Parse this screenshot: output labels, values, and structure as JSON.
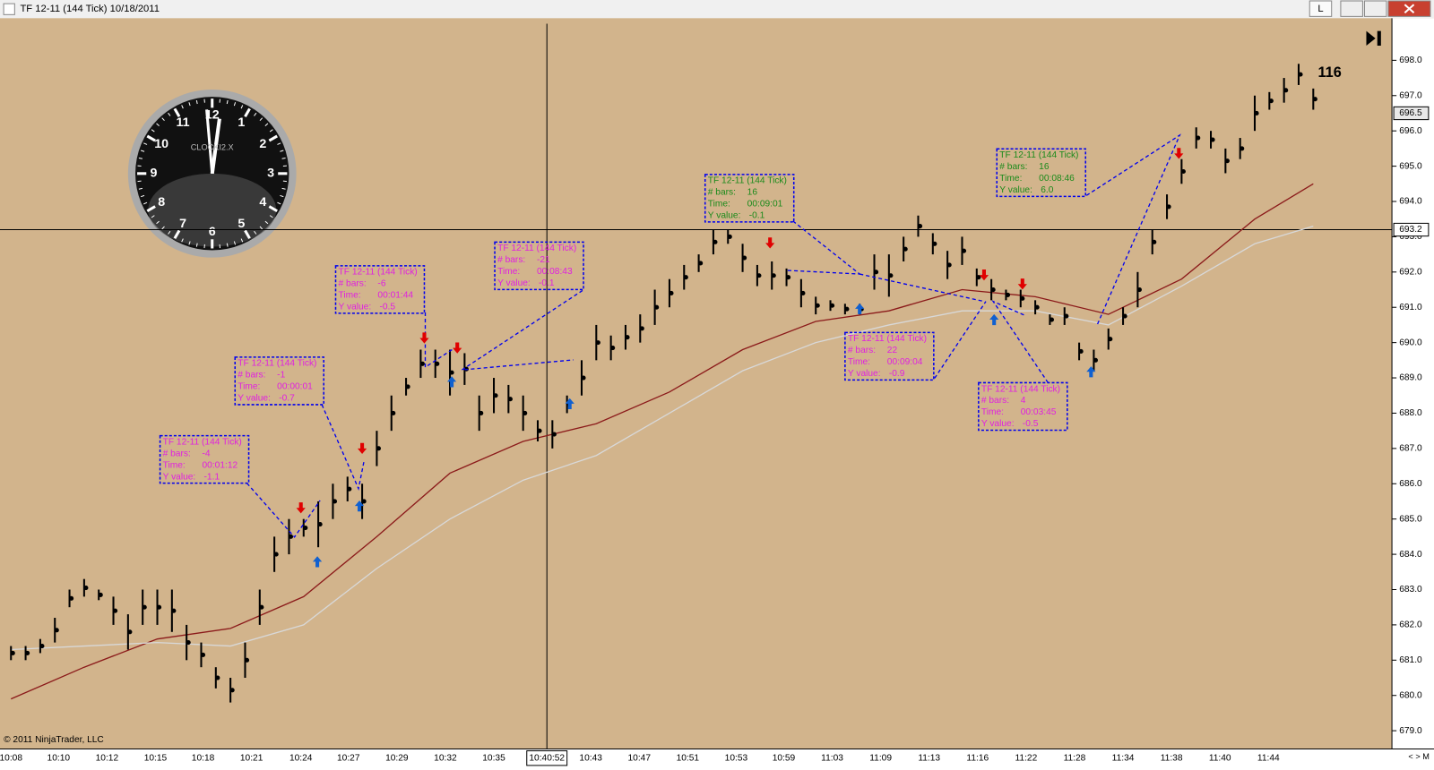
{
  "window": {
    "title": "TF 12-11 (144 Tick)  10/18/2011",
    "buttons": [
      "L"
    ]
  },
  "bar_count_label": "116",
  "copyright": "© 2011 NinjaTrader, LLC",
  "price_axis": {
    "ticks": [
      {
        "value": 679,
        "label": "679.0"
      },
      {
        "value": 680,
        "label": "680.0"
      },
      {
        "value": 681,
        "label": "681.0"
      },
      {
        "value": 682,
        "label": "682.0"
      },
      {
        "value": 683,
        "label": "683.0"
      },
      {
        "value": 684,
        "label": "684.0"
      },
      {
        "value": 685,
        "label": "685.0"
      },
      {
        "value": 686,
        "label": "686.0"
      },
      {
        "value": 687,
        "label": "687.0"
      },
      {
        "value": 688,
        "label": "688.0"
      },
      {
        "value": 689,
        "label": "689.0"
      },
      {
        "value": 690,
        "label": "690.0"
      },
      {
        "value": 691,
        "label": "691.0"
      },
      {
        "value": 692,
        "label": "692.0"
      },
      {
        "value": 693,
        "label": "693.0"
      },
      {
        "value": 694,
        "label": "694.0"
      },
      {
        "value": 695,
        "label": "695.0"
      },
      {
        "value": 696,
        "label": "696.0"
      },
      {
        "value": 697,
        "label": "697.0"
      },
      {
        "value": 698,
        "label": "698.0"
      }
    ],
    "crosshair": {
      "value": 693.2,
      "label": "693.2"
    },
    "last_price": {
      "value": 696.5,
      "label": "696.5"
    }
  },
  "time_axis": {
    "labels": [
      "10:08",
      "10:10",
      "10:12",
      "10:15",
      "10:18",
      "10:21",
      "10:24",
      "10:27",
      "10:29",
      "10:32",
      "10:35",
      "10:40:52",
      "10:43",
      "10:47",
      "10:51",
      "10:53",
      "10:59",
      "11:03",
      "11:09",
      "11:13",
      "11:16",
      "11:22",
      "11:28",
      "11:34",
      "11:38",
      "11:40",
      "11:44"
    ]
  },
  "price_bars": [
    [
      681.0,
      681.4
    ],
    [
      681.0,
      681.4
    ],
    [
      681.2,
      681.6
    ],
    [
      681.5,
      682.2
    ],
    [
      682.5,
      683.0
    ],
    [
      682.8,
      683.3
    ],
    [
      682.7,
      683.0
    ],
    [
      682.0,
      682.8
    ],
    [
      681.3,
      682.3
    ],
    [
      682.0,
      683.0
    ],
    [
      682.0,
      683.0
    ],
    [
      681.8,
      683.0
    ],
    [
      681.0,
      682.0
    ],
    [
      680.8,
      681.5
    ],
    [
      680.2,
      680.8
    ],
    [
      679.8,
      680.5
    ],
    [
      680.5,
      681.5
    ],
    [
      682.0,
      683.0
    ],
    [
      683.5,
      684.5
    ],
    [
      684.0,
      685.0
    ],
    [
      684.5,
      685.0
    ],
    [
      684.2,
      685.5
    ],
    [
      685.0,
      686.0
    ],
    [
      685.5,
      686.2
    ],
    [
      685.0,
      686.0
    ],
    [
      686.5,
      687.5
    ],
    [
      687.5,
      688.5
    ],
    [
      688.5,
      689.0
    ],
    [
      689.0,
      689.8
    ],
    [
      689.0,
      689.8
    ],
    [
      688.5,
      689.8
    ],
    [
      688.8,
      689.7
    ],
    [
      687.5,
      688.5
    ],
    [
      688.0,
      689.0
    ],
    [
      688.0,
      688.8
    ],
    [
      687.5,
      688.5
    ],
    [
      687.2,
      687.8
    ],
    [
      687.0,
      687.8
    ],
    [
      688.0,
      688.5
    ],
    [
      688.5,
      689.5
    ],
    [
      689.5,
      690.5
    ],
    [
      689.5,
      690.2
    ],
    [
      689.8,
      690.5
    ],
    [
      690.0,
      690.8
    ],
    [
      690.5,
      691.5
    ],
    [
      691.0,
      691.8
    ],
    [
      691.5,
      692.2
    ],
    [
      692.0,
      692.5
    ],
    [
      692.5,
      693.2
    ],
    [
      692.8,
      693.2
    ],
    [
      692.0,
      692.8
    ],
    [
      691.6,
      692.2
    ],
    [
      691.5,
      692.3
    ],
    [
      691.6,
      692.1
    ],
    [
      691.0,
      691.8
    ],
    [
      690.8,
      691.3
    ],
    [
      690.9,
      691.2
    ],
    [
      690.8,
      691.1
    ],
    [
      690.8,
      691.1
    ],
    [
      691.5,
      692.5
    ],
    [
      691.3,
      692.5
    ],
    [
      692.3,
      693.0
    ],
    [
      693.0,
      693.6
    ],
    [
      692.5,
      693.1
    ],
    [
      691.8,
      692.6
    ],
    [
      692.2,
      693.0
    ],
    [
      691.6,
      692.1
    ],
    [
      691.2,
      691.8
    ],
    [
      691.2,
      691.5
    ],
    [
      691.0,
      691.5
    ],
    [
      690.8,
      691.2
    ],
    [
      690.5,
      690.8
    ],
    [
      690.5,
      691.0
    ],
    [
      689.5,
      690.0
    ],
    [
      689.2,
      689.8
    ],
    [
      689.8,
      690.4
    ],
    [
      690.5,
      691.0
    ],
    [
      691.0,
      692.0
    ],
    [
      692.5,
      693.2
    ],
    [
      693.5,
      694.2
    ],
    [
      694.5,
      695.2
    ],
    [
      695.5,
      696.1
    ],
    [
      695.5,
      696.0
    ],
    [
      694.8,
      695.5
    ],
    [
      695.2,
      695.8
    ],
    [
      696.0,
      697.0
    ],
    [
      696.6,
      697.1
    ],
    [
      696.8,
      697.5
    ],
    [
      697.3,
      697.9
    ],
    [
      696.6,
      697.2
    ]
  ],
  "moving_averages": [
    {
      "color": "#8b1a1a",
      "values": [
        679.9,
        680.8,
        681.6,
        681.9,
        682.8,
        684.5,
        686.3,
        687.2,
        687.7,
        688.6,
        689.8,
        690.6,
        690.9,
        691.5,
        691.3,
        690.8,
        691.8,
        693.5,
        694.5
      ]
    },
    {
      "color": "#d8d8d8",
      "values": [
        681.3,
        681.4,
        681.5,
        681.4,
        682.0,
        683.6,
        685.0,
        686.1,
        686.8,
        688.0,
        689.2,
        690.0,
        690.5,
        690.9,
        690.9,
        690.5,
        691.6,
        692.8,
        693.3
      ]
    }
  ],
  "annotations": [
    {
      "title": "TF 12-11 (144 Tick)",
      "bars_label": "# bars:",
      "bars": "-4",
      "time_label": "Time:",
      "time": "00:01:12",
      "y_label": "Y value:",
      "y": "-1.1",
      "color": "#e020e0"
    },
    {
      "title": "TF 12-11 (144 Tick)",
      "bars_label": "# bars:",
      "bars": "-1",
      "time_label": "Time:",
      "time": "00:00:01",
      "y_label": "Y value:",
      "y": "-0.7",
      "color": "#e020e0"
    },
    {
      "title": "TF 12-11 (144 Tick)",
      "bars_label": "# bars:",
      "bars": "-6",
      "time_label": "Time:",
      "time": "00:01:44",
      "y_label": "Y value:",
      "y": "-0.5",
      "color": "#e020e0"
    },
    {
      "title": "TF 12-11 (144 Tick)",
      "bars_label": "# bars:",
      "bars": "-21",
      "time_label": "Time:",
      "time": "00:08:43",
      "y_label": "Y value:",
      "y": "-0.1",
      "color": "#e020e0"
    },
    {
      "title": "TF 12-11 (144 Tick)",
      "bars_label": "# bars:",
      "bars": "16",
      "time_label": "Time:",
      "time": "00:09:01",
      "y_label": "Y value:",
      "y": "-0.1",
      "color": "#1a8a1a"
    },
    {
      "title": "TF 12-11 (144 Tick)",
      "bars_label": "# bars:",
      "bars": "22",
      "time_label": "Time:",
      "time": "00:09:04",
      "y_label": "Y value:",
      "y": "-0.9",
      "color": "#e020e0"
    },
    {
      "title": "TF 12-11 (144 Tick)",
      "bars_label": "# bars:",
      "bars": "4",
      "time_label": "Time:",
      "time": "00:03:45",
      "y_label": "Y value:",
      "y": "-0.5",
      "color": "#e020e0"
    },
    {
      "title": "TF 12-11 (144 Tick)",
      "bars_label": "# bars:",
      "bars": "16",
      "time_label": "Time:",
      "time": "00:08:46",
      "y_label": "Y value:",
      "y": "6.0",
      "color": "#1a8a1a"
    }
  ],
  "clock": {
    "brand": "CLOCKI2.X",
    "numerals": [
      "12",
      "1",
      "2",
      "3",
      "4",
      "5",
      "6",
      "7",
      "8",
      "9",
      "10",
      "11"
    ]
  }
}
